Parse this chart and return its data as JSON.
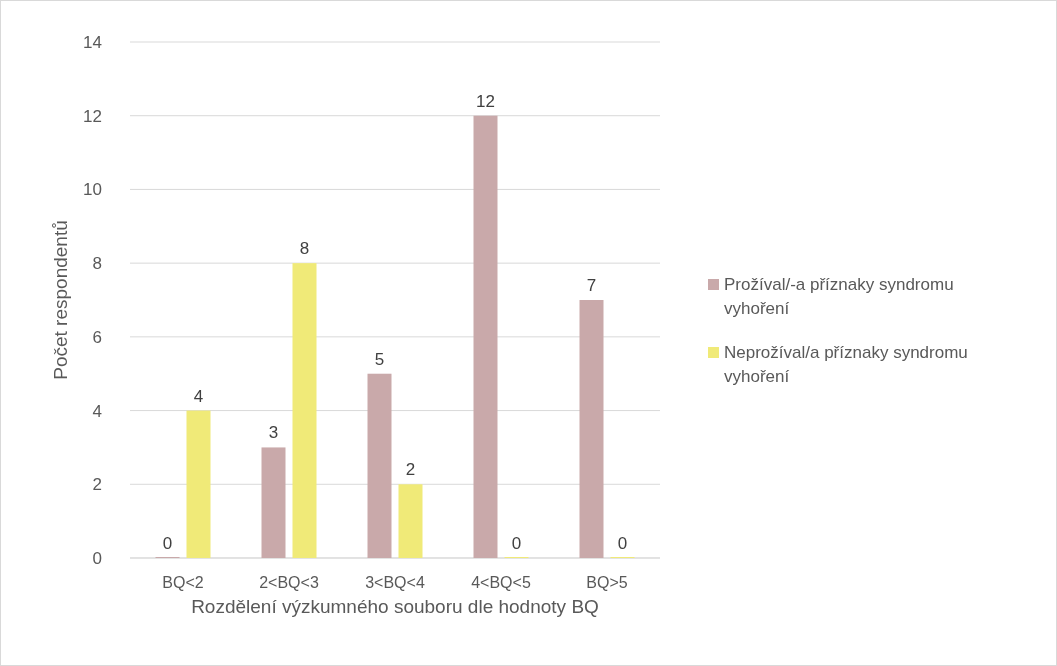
{
  "chart_data": {
    "type": "bar",
    "xlabel": "Rozdělení výzkumného souboru dle hodnoty BQ",
    "ylabel": "Počet respondentů",
    "categories": [
      "BQ<2",
      "2<BQ<3",
      "3<BQ<4",
      "4<BQ<5",
      "BQ>5"
    ],
    "series": [
      {
        "name": "Prožíval/-a příznaky syndromu vyhoření",
        "color": "#c9a9aa",
        "values": [
          0,
          3,
          5,
          12,
          7
        ]
      },
      {
        "name": "Neprožíval/a příznaky syndromu vyhoření",
        "color": "#f0ea78",
        "values": [
          4,
          8,
          2,
          0,
          0
        ]
      }
    ],
    "ylim": [
      0,
      14
    ],
    "yticks": [
      0,
      2,
      4,
      6,
      8,
      10,
      12,
      14
    ],
    "grid": "y",
    "legend": "right",
    "data_labels": true
  }
}
